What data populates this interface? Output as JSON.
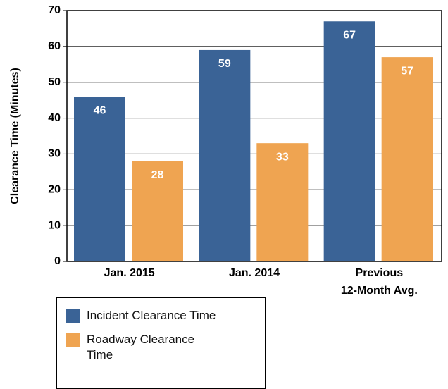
{
  "chart_data": {
    "type": "bar",
    "y_axis_label": "Clearance Time (Minutes)",
    "categories": [
      "Jan. 2015",
      "Jan. 2014",
      "Previous\n12-Month Avg."
    ],
    "series": [
      {
        "name": "Incident Clearance Time",
        "color": "#3a6396",
        "values": [
          46,
          59,
          67
        ]
      },
      {
        "name": "Roadway Clearance\nTime",
        "color": "#efa451",
        "values": [
          28,
          33,
          57
        ]
      }
    ],
    "ylim": [
      0,
      70
    ],
    "yticks": [
      0,
      10,
      20,
      30,
      40,
      50,
      60,
      70
    ],
    "grid": true,
    "legend": "bottom-left"
  }
}
